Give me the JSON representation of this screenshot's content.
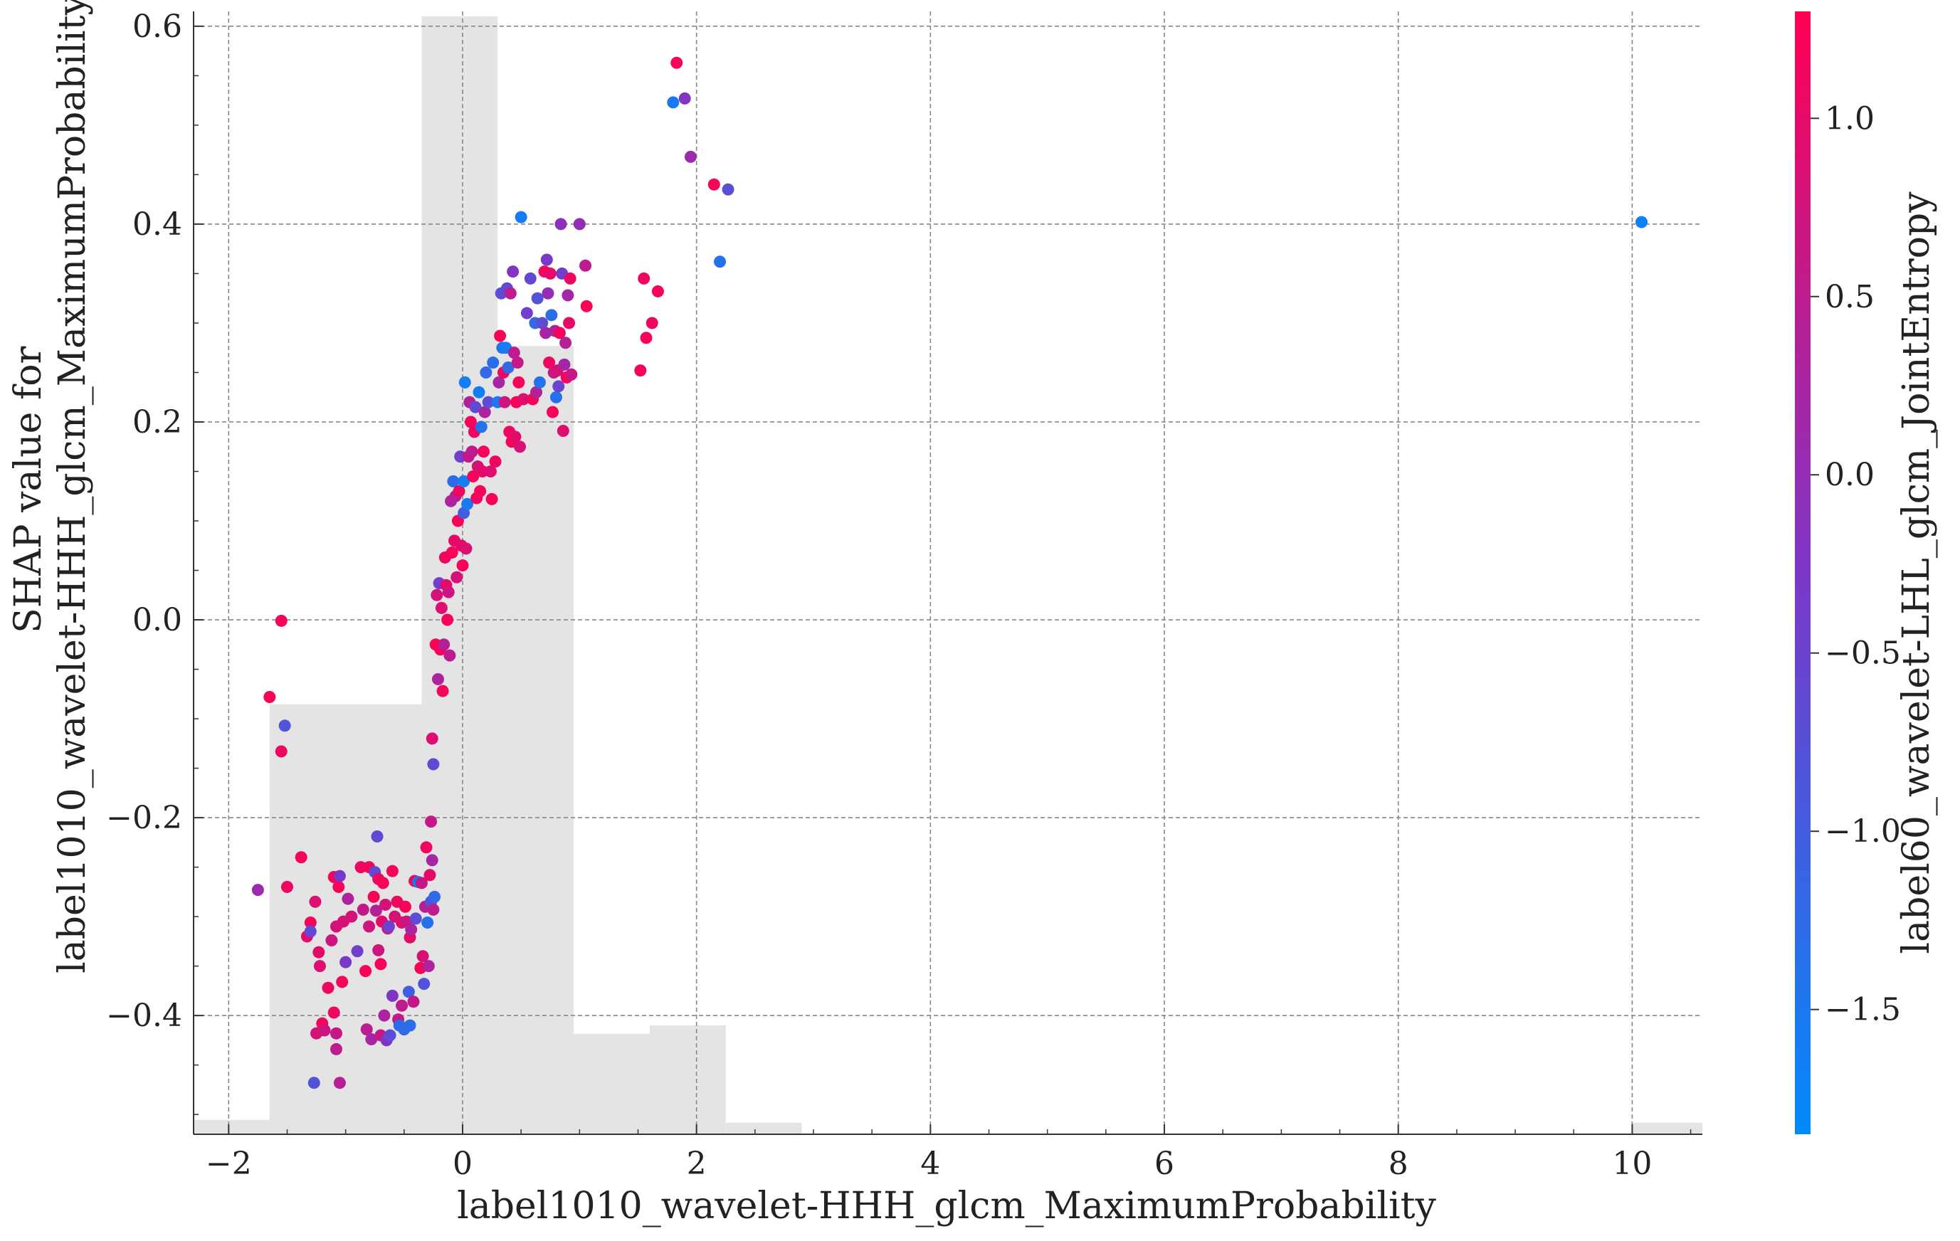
{
  "chart_data": {
    "type": "scatter",
    "title": "",
    "xlabel": "label1010_wavelet-HHH_glcm_MaximumProbability",
    "ylabel_lines": [
      "SHAP value for",
      "label1010_wavelet-HHH_glcm_MaximumProbability"
    ],
    "xlim": [
      -2.3,
      10.6
    ],
    "ylim": [
      -0.52,
      0.615
    ],
    "xticks": [
      -2,
      0,
      2,
      4,
      6,
      8,
      10
    ],
    "yticks": [
      -0.4,
      -0.2,
      0.0,
      0.2,
      0.4,
      0.6
    ],
    "grid": true,
    "colorbar": {
      "label": "label60_wavelet-LHL_glcm_JointEntropy",
      "range": [
        -1.85,
        1.3
      ],
      "ticks": [
        -1.5,
        -1.0,
        -0.5,
        0.0,
        0.5,
        1.0
      ],
      "color_low": "#008afb",
      "color_mid": "#7c37c8",
      "color_high": "#ff0052"
    },
    "histogram": {
      "color": "#e4e4e4",
      "bins": [
        {
          "x0": -2.3,
          "x1": -1.65,
          "height": 0.005
        },
        {
          "x0": -1.65,
          "x1": -1.0,
          "height": 0.15
        },
        {
          "x0": -1.0,
          "x1": -0.35,
          "height": 0.15
        },
        {
          "x0": -0.35,
          "x1": 0.3,
          "height": 0.39
        },
        {
          "x0": 0.3,
          "x1": 0.95,
          "height": 0.275
        },
        {
          "x0": 0.95,
          "x1": 1.6,
          "height": 0.035
        },
        {
          "x0": 1.6,
          "x1": 2.25,
          "height": 0.038
        },
        {
          "x0": 2.25,
          "x1": 2.9,
          "height": 0.004
        },
        {
          "x0": 10.0,
          "x1": 10.6,
          "height": 0.004
        }
      ]
    },
    "points": [
      [
        -1.75,
        -0.273,
        0.1
      ],
      [
        -1.65,
        -0.078,
        1.2
      ],
      [
        -1.55,
        -0.001,
        1.2
      ],
      [
        -1.55,
        -0.133,
        1.1
      ],
      [
        -1.52,
        -0.107,
        -0.8
      ],
      [
        -1.5,
        -0.27,
        1.1
      ],
      [
        -1.38,
        -0.24,
        1.2
      ],
      [
        -1.33,
        -0.32,
        1.0
      ],
      [
        -1.3,
        -0.306,
        1.2
      ],
      [
        -1.3,
        -0.315,
        -0.6
      ],
      [
        -1.27,
        -0.468,
        -0.8
      ],
      [
        -1.26,
        -0.285,
        0.9
      ],
      [
        -1.25,
        -0.418,
        0.8
      ],
      [
        -1.23,
        -0.336,
        1.0
      ],
      [
        -1.22,
        -0.35,
        0.9
      ],
      [
        -1.2,
        -0.408,
        1.1
      ],
      [
        -1.18,
        -0.415,
        0.7
      ],
      [
        -1.15,
        -0.372,
        1.1
      ],
      [
        -1.12,
        -0.324,
        0.7
      ],
      [
        -1.1,
        -0.26,
        1.2
      ],
      [
        -1.1,
        -0.397,
        1.1
      ],
      [
        -1.08,
        -0.434,
        0.5
      ],
      [
        -1.08,
        -0.418,
        0.6
      ],
      [
        -1.08,
        -0.31,
        0.8
      ],
      [
        -1.06,
        -0.27,
        1.2
      ],
      [
        -1.05,
        -0.468,
        0.4
      ],
      [
        -1.05,
        -0.259,
        -0.3
      ],
      [
        -1.03,
        -0.366,
        1.2
      ],
      [
        -1.02,
        -0.305,
        0.8
      ],
      [
        -1.0,
        -0.346,
        -0.3
      ],
      [
        -0.98,
        -0.282,
        0.3
      ],
      [
        -0.95,
        -0.3,
        0.8
      ],
      [
        -0.9,
        -0.335,
        -0.4
      ],
      [
        -0.87,
        -0.25,
        1.1
      ],
      [
        -0.85,
        -0.293,
        0.6
      ],
      [
        -0.83,
        -0.355,
        1.2
      ],
      [
        -0.82,
        -0.414,
        0.5
      ],
      [
        -0.8,
        -0.25,
        1.2
      ],
      [
        -0.8,
        -0.31,
        0.7
      ],
      [
        -0.78,
        -0.424,
        0.2
      ],
      [
        -0.76,
        -0.28,
        1.2
      ],
      [
        -0.75,
        -0.255,
        -0.6
      ],
      [
        -0.74,
        -0.294,
        0.4
      ],
      [
        -0.73,
        -0.219,
        -0.6
      ],
      [
        -0.72,
        -0.334,
        0.7
      ],
      [
        -0.72,
        -0.262,
        1.1
      ],
      [
        -0.7,
        -0.348,
        1.2
      ],
      [
        -0.7,
        -0.42,
        0.6
      ],
      [
        -0.69,
        -0.305,
        1.0
      ],
      [
        -0.68,
        -0.266,
        1.2
      ],
      [
        -0.67,
        -0.4,
        0.3
      ],
      [
        -0.66,
        -0.288,
        0.8
      ],
      [
        -0.65,
        -0.425,
        -0.2
      ],
      [
        -0.64,
        -0.312,
        0.5
      ],
      [
        -0.63,
        -0.31,
        -0.5
      ],
      [
        -0.62,
        -0.42,
        -0.7
      ],
      [
        -0.6,
        -0.38,
        -0.2
      ],
      [
        -0.6,
        -0.254,
        1.2
      ],
      [
        -0.58,
        -0.3,
        0.8
      ],
      [
        -0.56,
        -0.285,
        1.1
      ],
      [
        -0.55,
        -0.404,
        0.6
      ],
      [
        -0.54,
        -0.41,
        -1.3
      ],
      [
        -0.52,
        -0.306,
        0.9
      ],
      [
        -0.52,
        -0.39,
        0.5
      ],
      [
        -0.5,
        -0.414,
        -1.2
      ],
      [
        -0.49,
        -0.29,
        1.2
      ],
      [
        -0.48,
        -0.305,
        0.7
      ],
      [
        -0.46,
        -0.376,
        -1.0
      ],
      [
        -0.45,
        -0.41,
        -1.3
      ],
      [
        -0.45,
        -0.321,
        1.0
      ],
      [
        -0.44,
        -0.313,
        0.3
      ],
      [
        -0.42,
        -0.386,
        0.6
      ],
      [
        -0.41,
        -0.264,
        1.1
      ],
      [
        -0.4,
        -0.302,
        -0.7
      ],
      [
        -0.38,
        -0.265,
        -1.4
      ],
      [
        -0.36,
        -0.352,
        1.2
      ],
      [
        -0.35,
        -0.266,
        0.6
      ],
      [
        -0.34,
        -0.34,
        0.8
      ],
      [
        -0.33,
        -0.368,
        -0.8
      ],
      [
        -0.32,
        -0.29,
        0.4
      ],
      [
        -0.31,
        -0.23,
        1.1
      ],
      [
        -0.3,
        -0.306,
        -1.4
      ],
      [
        -0.29,
        -0.35,
        0.3
      ],
      [
        -0.28,
        -0.258,
        1.0
      ],
      [
        -0.27,
        -0.204,
        0.6
      ],
      [
        -0.27,
        -0.285,
        -0.9
      ],
      [
        -0.26,
        -0.243,
        0.2
      ],
      [
        -0.26,
        -0.12,
        0.9
      ],
      [
        -0.25,
        -0.146,
        -0.6
      ],
      [
        -0.25,
        -0.293,
        0.5
      ],
      [
        -0.24,
        -0.28,
        -1.2
      ],
      [
        -0.23,
        -0.025,
        1.3
      ],
      [
        -0.22,
        0.025,
        0.8
      ],
      [
        -0.21,
        -0.06,
        0.3
      ],
      [
        -0.2,
        0.037,
        -0.4
      ],
      [
        -0.19,
        -0.03,
        1.2
      ],
      [
        -0.18,
        0.012,
        0.9
      ],
      [
        -0.17,
        -0.072,
        1.2
      ],
      [
        -0.16,
        -0.025,
        0.4
      ],
      [
        -0.15,
        0.063,
        1.1
      ],
      [
        -0.14,
        0.035,
        1.0
      ],
      [
        -0.13,
        0.0,
        1.2
      ],
      [
        -0.12,
        0.028,
        0.7
      ],
      [
        -0.11,
        -0.036,
        0.5
      ],
      [
        -0.1,
        0.12,
        0.3
      ],
      [
        -0.09,
        0.068,
        1.2
      ],
      [
        -0.08,
        0.14,
        -1.3
      ],
      [
        -0.07,
        0.08,
        1.0
      ],
      [
        -0.06,
        0.125,
        0.4
      ],
      [
        -0.05,
        0.043,
        0.8
      ],
      [
        -0.04,
        0.1,
        1.2
      ],
      [
        -0.03,
        0.13,
        1.1
      ],
      [
        -0.02,
        0.165,
        -0.4
      ],
      [
        -0.01,
        0.075,
        1.0
      ],
      [
        0.0,
        0.055,
        1.2
      ],
      [
        0.01,
        0.108,
        -1.0
      ],
      [
        0.01,
        0.14,
        -1.6
      ],
      [
        0.02,
        0.24,
        -1.6
      ],
      [
        0.03,
        0.072,
        0.9
      ],
      [
        0.04,
        0.117,
        -1.5
      ],
      [
        0.05,
        0.165,
        0.6
      ],
      [
        0.06,
        0.22,
        0.4
      ],
      [
        0.07,
        0.2,
        1.2
      ],
      [
        0.08,
        0.17,
        0.5
      ],
      [
        0.09,
        0.145,
        1.2
      ],
      [
        0.1,
        0.19,
        1.1
      ],
      [
        0.11,
        0.215,
        -0.6
      ],
      [
        0.12,
        0.123,
        1.1
      ],
      [
        0.13,
        0.155,
        0.8
      ],
      [
        0.14,
        0.23,
        -1.6
      ],
      [
        0.15,
        0.13,
        1.2
      ],
      [
        0.16,
        0.195,
        -1.4
      ],
      [
        0.17,
        0.15,
        1.0
      ],
      [
        0.18,
        0.17,
        1.2
      ],
      [
        0.19,
        0.21,
        0.3
      ],
      [
        0.2,
        0.25,
        -1.2
      ],
      [
        0.22,
        0.22,
        -0.7
      ],
      [
        0.24,
        0.15,
        0.9
      ],
      [
        0.25,
        0.122,
        1.2
      ],
      [
        0.26,
        0.26,
        -1.3
      ],
      [
        0.28,
        0.16,
        1.1
      ],
      [
        0.3,
        0.22,
        -1.5
      ],
      [
        0.31,
        0.24,
        0.2
      ],
      [
        0.32,
        0.287,
        1.2
      ],
      [
        0.33,
        0.33,
        -0.7
      ],
      [
        0.34,
        0.275,
        -1.4
      ],
      [
        0.35,
        0.25,
        1.1
      ],
      [
        0.36,
        0.22,
        0.7
      ],
      [
        0.37,
        0.275,
        -1.6
      ],
      [
        0.38,
        0.335,
        -0.6
      ],
      [
        0.39,
        0.255,
        -1.2
      ],
      [
        0.4,
        0.19,
        1.1
      ],
      [
        0.41,
        0.33,
        0.5
      ],
      [
        0.42,
        0.18,
        1.2
      ],
      [
        0.43,
        0.352,
        -0.2
      ],
      [
        0.44,
        0.27,
        0.5
      ],
      [
        0.45,
        0.185,
        1.0
      ],
      [
        0.46,
        0.22,
        1.2
      ],
      [
        0.47,
        0.26,
        0.6
      ],
      [
        0.48,
        0.24,
        1.2
      ],
      [
        0.49,
        0.175,
        0.8
      ],
      [
        0.5,
        0.407,
        -1.6
      ],
      [
        0.52,
        0.223,
        0.9
      ],
      [
        0.55,
        0.31,
        -0.4
      ],
      [
        0.58,
        0.345,
        -0.6
      ],
      [
        0.6,
        0.223,
        1.2
      ],
      [
        0.62,
        0.3,
        -1.2
      ],
      [
        0.63,
        0.23,
        0.4
      ],
      [
        0.64,
        0.325,
        -0.8
      ],
      [
        0.66,
        0.24,
        -1.4
      ],
      [
        0.68,
        0.3,
        -0.7
      ],
      [
        0.7,
        0.352,
        1.2
      ],
      [
        0.71,
        0.29,
        0.2
      ],
      [
        0.72,
        0.364,
        -0.3
      ],
      [
        0.73,
        0.33,
        0.0
      ],
      [
        0.74,
        0.26,
        1.1
      ],
      [
        0.75,
        0.35,
        1.0
      ],
      [
        0.76,
        0.308,
        -1.3
      ],
      [
        0.77,
        0.21,
        1.2
      ],
      [
        0.78,
        0.25,
        0.6
      ],
      [
        0.79,
        0.292,
        0.3
      ],
      [
        0.8,
        0.225,
        -1.4
      ],
      [
        0.81,
        0.252,
        0.8
      ],
      [
        0.82,
        0.236,
        -0.5
      ],
      [
        0.83,
        0.29,
        1.2
      ],
      [
        0.84,
        0.4,
        -0.1
      ],
      [
        0.85,
        0.35,
        -0.4
      ],
      [
        0.86,
        0.191,
        0.9
      ],
      [
        0.87,
        0.258,
        0.2
      ],
      [
        0.88,
        0.28,
        0.4
      ],
      [
        0.89,
        0.245,
        1.2
      ],
      [
        0.9,
        0.328,
        0.2
      ],
      [
        0.91,
        0.3,
        1.0
      ],
      [
        0.92,
        0.345,
        1.1
      ],
      [
        0.93,
        0.248,
        0.6
      ],
      [
        1.0,
        0.4,
        0.0
      ],
      [
        1.05,
        0.358,
        0.5
      ],
      [
        1.06,
        0.317,
        1.2
      ],
      [
        1.52,
        0.252,
        1.2
      ],
      [
        1.55,
        0.345,
        1.1
      ],
      [
        1.57,
        0.285,
        1.2
      ],
      [
        1.62,
        0.3,
        1.1
      ],
      [
        1.67,
        0.332,
        1.2
      ],
      [
        1.8,
        0.523,
        -1.5
      ],
      [
        1.83,
        0.563,
        1.2
      ],
      [
        1.9,
        0.527,
        -0.2
      ],
      [
        1.95,
        0.468,
        0.1
      ],
      [
        2.15,
        0.44,
        1.2
      ],
      [
        2.2,
        0.362,
        -1.4
      ],
      [
        2.27,
        0.435,
        -0.7
      ],
      [
        10.08,
        0.402,
        -1.7
      ]
    ]
  }
}
